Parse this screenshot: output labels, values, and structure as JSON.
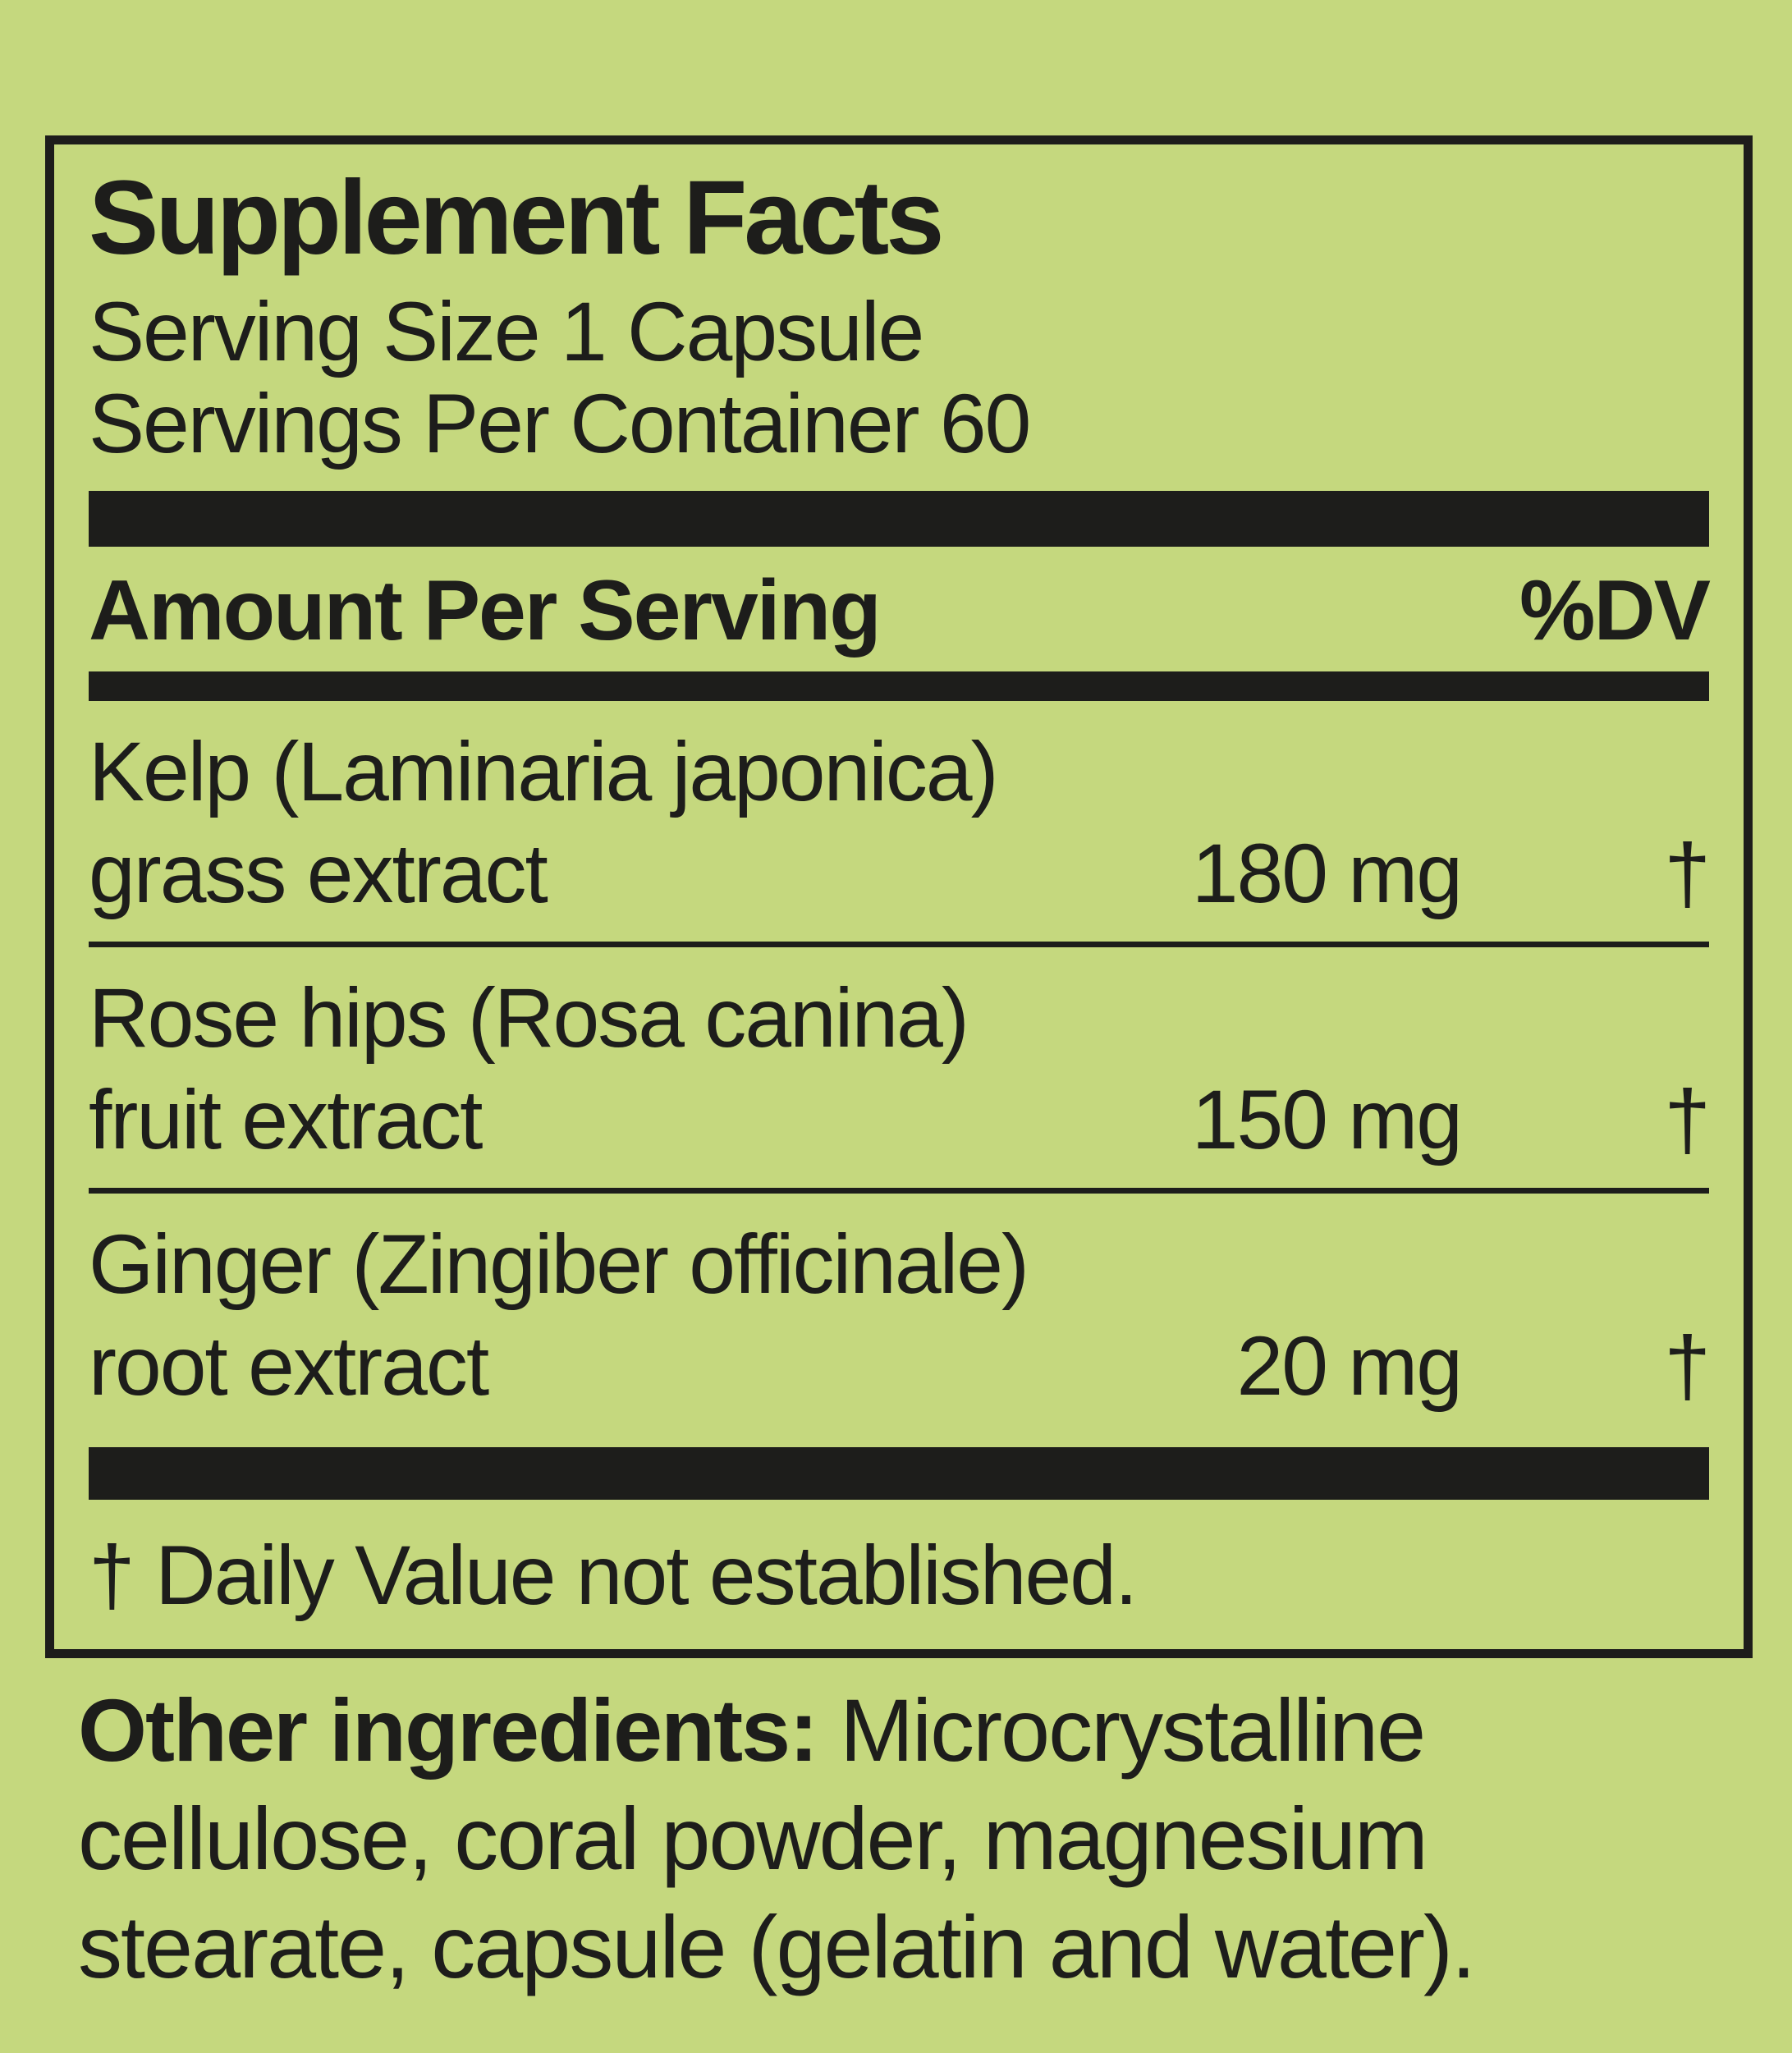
{
  "panel": {
    "title": "Supplement Facts",
    "serving_size": "Serving Size 1 Capsule",
    "servings_per_container": "Servings Per Container 60",
    "amount_header": "Amount Per Serving",
    "dv_header": "%DV",
    "rows": [
      {
        "name": "Kelp (Laminaria japonica)",
        "part": "grass extract",
        "amount": "180 mg",
        "dv": "†"
      },
      {
        "name": "Rose hips (Rosa canina)",
        "part": "fruit extract",
        "amount": "150 mg",
        "dv": "†"
      },
      {
        "name": "Ginger (Zingiber officinale)",
        "part": "root extract",
        "amount": "20 mg",
        "dv": "†"
      }
    ],
    "footnote": "† Daily Value not established.",
    "other_ingredients": {
      "label": "Other ingredients:",
      "text": "Microcrystalline cellulose, coral powder, magnesium stearate, capsule (gelatin and water)."
    },
    "colors": {
      "background": "#c5d87e",
      "ink": "#1d1d1b"
    }
  }
}
